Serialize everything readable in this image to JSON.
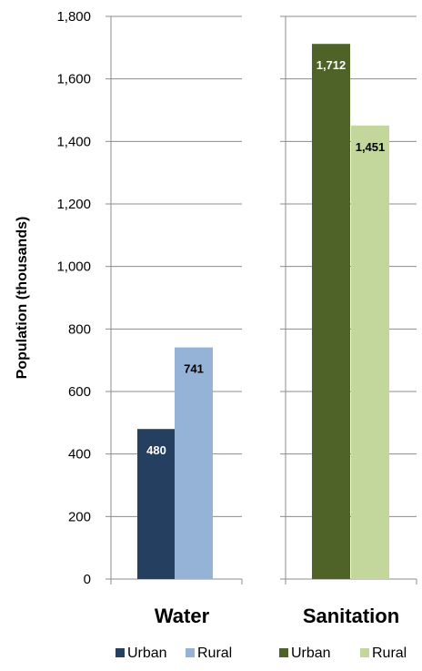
{
  "chart_data": {
    "type": "bar",
    "ylabel": "Population (thousands)",
    "ylim": [
      0,
      1800
    ],
    "yticks": [
      0,
      200,
      400,
      600,
      800,
      1000,
      1200,
      1400,
      1600,
      1800
    ],
    "ytick_labels": [
      "0",
      "200",
      "400",
      "600",
      "800",
      "1,000",
      "1,200",
      "1,400",
      "1,600",
      "1,800"
    ],
    "grid": true,
    "legend_position": "bottom",
    "groups": [
      {
        "label": "Water",
        "series": [
          {
            "name": "Urban",
            "value": 480,
            "value_label": "480",
            "color": "#243F60",
            "label_color": "#FFFFFF"
          },
          {
            "name": "Rural",
            "value": 741,
            "value_label": "741",
            "color": "#95B3D7",
            "label_color": "#000000"
          }
        ]
      },
      {
        "label": "Sanitation",
        "series": [
          {
            "name": "Urban",
            "value": 1712,
            "value_label": "1,712",
            "color": "#4F6228",
            "label_color": "#FFFFFF"
          },
          {
            "name": "Rural",
            "value": 1451,
            "value_label": "1,451",
            "color": "#C3D69B",
            "label_color": "#000000"
          }
        ]
      }
    ]
  }
}
